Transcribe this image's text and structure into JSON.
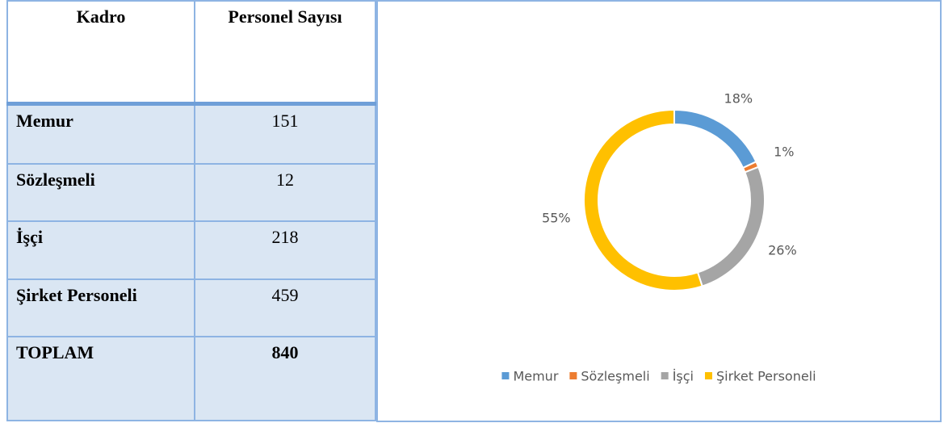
{
  "table": {
    "header": [
      "Kadro",
      "Personel Sayısı"
    ],
    "rows": [
      [
        "Memur",
        151
      ],
      [
        "Sözleşmeli",
        12
      ],
      [
        "İşçi",
        218
      ],
      [
        "Şirket Personeli",
        459
      ],
      [
        "TOPLAM",
        840
      ]
    ]
  },
  "chart_data": {
    "type": "donut",
    "categories": [
      "Memur",
      "Sözleşmeli",
      "İşçi",
      "Şirket Personeli"
    ],
    "values": [
      18,
      1,
      26,
      55
    ],
    "value_labels": [
      "18%",
      "1%",
      "26%",
      "55%"
    ],
    "colors": [
      "#5b9bd5",
      "#ed7d31",
      "#a5a5a5",
      "#ffc000"
    ],
    "legend": "bottom"
  }
}
